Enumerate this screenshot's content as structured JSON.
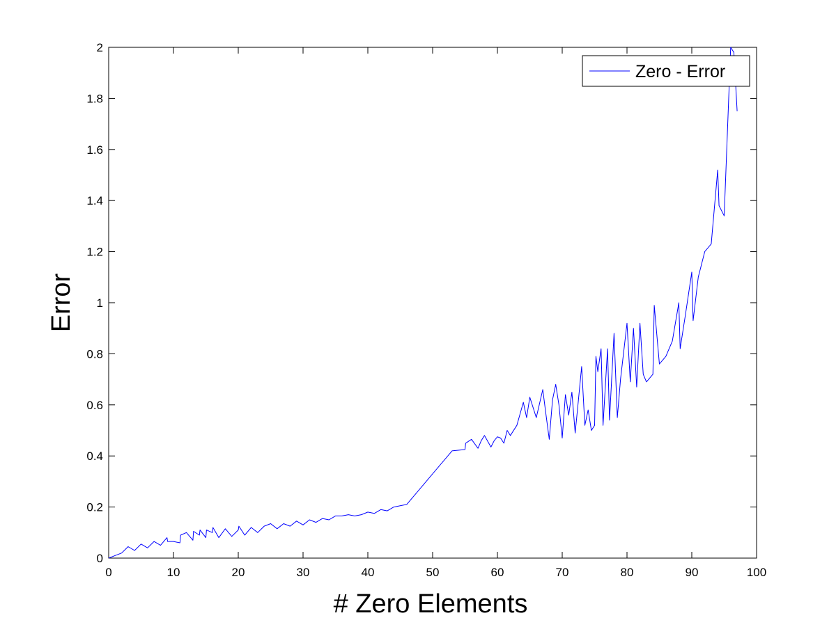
{
  "chart_data": {
    "type": "line",
    "title": "",
    "xlabel": "# Zero Elements",
    "ylabel": "Error",
    "xlim": [
      0,
      100
    ],
    "ylim": [
      0,
      2
    ],
    "xticks": [
      "0",
      "10",
      "20",
      "30",
      "40",
      "50",
      "60",
      "70",
      "80",
      "90",
      "100"
    ],
    "yticks": [
      "0",
      "0.2",
      "0.4",
      "0.6",
      "0.8",
      "1",
      "1.2",
      "1.4",
      "1.6",
      "1.8",
      "2"
    ],
    "grid": false,
    "legend_position": "top-right",
    "series": [
      {
        "name": "Zero - Error",
        "color": "#0000ff",
        "points": [
          [
            0,
            0.0
          ],
          [
            1,
            0.01
          ],
          [
            2,
            0.02
          ],
          [
            3,
            0.045
          ],
          [
            4,
            0.03
          ],
          [
            5,
            0.055
          ],
          [
            6,
            0.04
          ],
          [
            7,
            0.065
          ],
          [
            8,
            0.05
          ],
          [
            9,
            0.08
          ],
          [
            9.1,
            0.065
          ],
          [
            10,
            0.065
          ],
          [
            11,
            0.06
          ],
          [
            11.1,
            0.09
          ],
          [
            12,
            0.1
          ],
          [
            13,
            0.07
          ],
          [
            13.1,
            0.105
          ],
          [
            14,
            0.09
          ],
          [
            14.1,
            0.11
          ],
          [
            15,
            0.08
          ],
          [
            15.1,
            0.11
          ],
          [
            16,
            0.1
          ],
          [
            16.1,
            0.12
          ],
          [
            17,
            0.08
          ],
          [
            18,
            0.115
          ],
          [
            19,
            0.085
          ],
          [
            20,
            0.11
          ],
          [
            20.1,
            0.125
          ],
          [
            21,
            0.09
          ],
          [
            22,
            0.12
          ],
          [
            23,
            0.1
          ],
          [
            24,
            0.125
          ],
          [
            25,
            0.135
          ],
          [
            26,
            0.115
          ],
          [
            27,
            0.135
          ],
          [
            28,
            0.125
          ],
          [
            29,
            0.145
          ],
          [
            30,
            0.13
          ],
          [
            31,
            0.15
          ],
          [
            32,
            0.14
          ],
          [
            33,
            0.155
          ],
          [
            34,
            0.15
          ],
          [
            35,
            0.165
          ],
          [
            36,
            0.165
          ],
          [
            37,
            0.17
          ],
          [
            38,
            0.165
          ],
          [
            39,
            0.17
          ],
          [
            40,
            0.18
          ],
          [
            41,
            0.175
          ],
          [
            42,
            0.19
          ],
          [
            43,
            0.185
          ],
          [
            44,
            0.2
          ],
          [
            46,
            0.21
          ],
          [
            53,
            0.42
          ],
          [
            55,
            0.425
          ],
          [
            55.1,
            0.45
          ],
          [
            56,
            0.465
          ],
          [
            57,
            0.43
          ],
          [
            57.5,
            0.46
          ],
          [
            58,
            0.48
          ],
          [
            59,
            0.435
          ],
          [
            59.5,
            0.46
          ],
          [
            60,
            0.475
          ],
          [
            60.5,
            0.47
          ],
          [
            61,
            0.45
          ],
          [
            61.5,
            0.5
          ],
          [
            62,
            0.48
          ],
          [
            63,
            0.52
          ],
          [
            64,
            0.61
          ],
          [
            64.5,
            0.55
          ],
          [
            65,
            0.63
          ],
          [
            66,
            0.55
          ],
          [
            67,
            0.66
          ],
          [
            67.5,
            0.56
          ],
          [
            68,
            0.465
          ],
          [
            68.5,
            0.62
          ],
          [
            69,
            0.68
          ],
          [
            69.5,
            0.6
          ],
          [
            70,
            0.47
          ],
          [
            70.5,
            0.64
          ],
          [
            71,
            0.56
          ],
          [
            71.5,
            0.65
          ],
          [
            72,
            0.49
          ],
          [
            72.5,
            0.62
          ],
          [
            73,
            0.75
          ],
          [
            73.5,
            0.52
          ],
          [
            74,
            0.58
          ],
          [
            74.5,
            0.5
          ],
          [
            75,
            0.52
          ],
          [
            75.2,
            0.79
          ],
          [
            75.5,
            0.73
          ],
          [
            76,
            0.82
          ],
          [
            76.3,
            0.52
          ],
          [
            77,
            0.82
          ],
          [
            77.3,
            0.54
          ],
          [
            78,
            0.88
          ],
          [
            78.5,
            0.55
          ],
          [
            79,
            0.7
          ],
          [
            80,
            0.92
          ],
          [
            80.5,
            0.69
          ],
          [
            81,
            0.9
          ],
          [
            81.5,
            0.67
          ],
          [
            82,
            0.92
          ],
          [
            82.5,
            0.72
          ],
          [
            83,
            0.69
          ],
          [
            84,
            0.72
          ],
          [
            84.2,
            0.99
          ],
          [
            85,
            0.76
          ],
          [
            86,
            0.79
          ],
          [
            87,
            0.85
          ],
          [
            88,
            1.0
          ],
          [
            88.2,
            0.82
          ],
          [
            89,
            0.95
          ],
          [
            90,
            1.12
          ],
          [
            90.2,
            0.93
          ],
          [
            91,
            1.1
          ],
          [
            92,
            1.2
          ],
          [
            93,
            1.23
          ],
          [
            94,
            1.52
          ],
          [
            94.2,
            1.38
          ],
          [
            95,
            1.34
          ],
          [
            96,
            2.0
          ],
          [
            96.5,
            1.98
          ],
          [
            97,
            1.75
          ]
        ]
      }
    ]
  }
}
